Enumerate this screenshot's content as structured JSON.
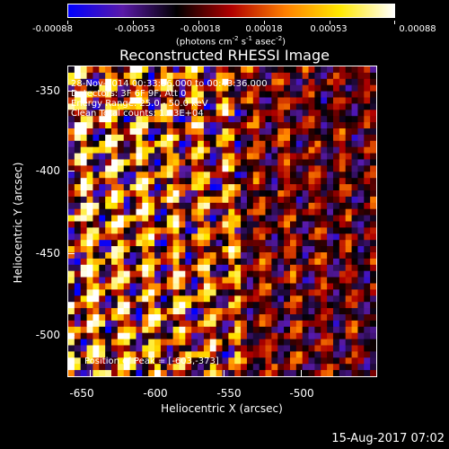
{
  "colorbar": {
    "tick_labels": [
      "-0.00088",
      "-0.00053",
      "-0.00018",
      "0.00018",
      "0.00053",
      "0.00088"
    ],
    "units_prefix": "(photons cm",
    "units_exp1": "-2",
    "units_mid": " s",
    "units_exp2": "-1",
    "units_mid2": " asec",
    "units_exp3": "-2",
    "units_suffix": ")",
    "colors": [
      "#0000ff",
      "#5a1aa8",
      "#000000",
      "#b00000",
      "#ff8000",
      "#ffe800",
      "#ffffff"
    ]
  },
  "title": "Reconstructed RHESSI Image",
  "info": {
    "line1": "28-Nov-2014 00:33:36.000 to 00:43:36.000",
    "line2": "Detectors: 3F 6F 9F, Att 0",
    "line3": "Energy Range: 25.0 - 50.0 keV",
    "line4": "Clean    Total counts: 1.33E+04"
  },
  "peak": "Position of Peak = [-603,-373]",
  "axes": {
    "xlabel": "Heliocentric X (arcsec)",
    "ylabel": "Heliocentric Y (arcsec)",
    "x_ticks": [
      "-650",
      "-600",
      "-550",
      "-500"
    ],
    "y_ticks": [
      "-350",
      "-400",
      "-450",
      "-500"
    ],
    "xlim": [
      -664,
      -463
    ],
    "ylim": [
      -528,
      -328
    ]
  },
  "timestamp": "15-Aug-2017 07:02",
  "chart_data": {
    "type": "heatmap",
    "title": "Reconstructed RHESSI Image",
    "xlabel": "Heliocentric X (arcsec)",
    "ylabel": "Heliocentric Y (arcsec)",
    "xlim": [
      -664,
      -463
    ],
    "ylim": [
      -528,
      -328
    ],
    "colorbar_range": [
      -0.00088,
      0.00088
    ],
    "peak_position": [
      -603,
      -373
    ]
  }
}
